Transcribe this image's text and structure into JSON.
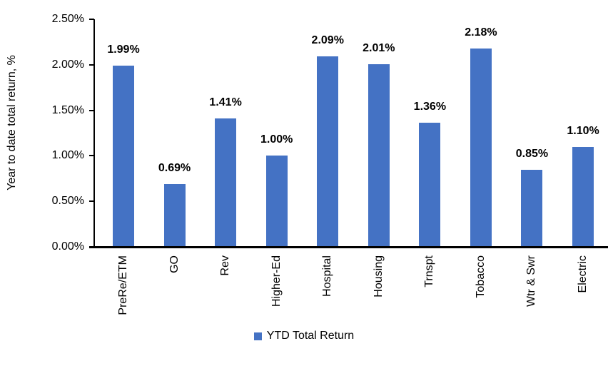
{
  "chart_data": {
    "type": "bar",
    "title": "",
    "categories": [
      "PreRe/ETM",
      "GO",
      "Rev",
      "Higher-Ed",
      "Hospital",
      "Housing",
      "Trnspt",
      "Tobacco",
      "Wtr & Swr",
      "Electric"
    ],
    "values": [
      1.99,
      0.69,
      1.41,
      1.0,
      2.09,
      2.01,
      1.36,
      2.18,
      0.85,
      1.1
    ],
    "value_labels": [
      "1.99%",
      "0.69%",
      "1.41%",
      "1.00%",
      "2.09%",
      "2.01%",
      "1.36%",
      "2.18%",
      "0.85%",
      "1.10%"
    ],
    "xlabel": "",
    "ylabel": "Year to date total return, %",
    "ylim": [
      0,
      2.5
    ],
    "ytick_step": 0.5,
    "ytick_labels": [
      "0.00%",
      "0.50%",
      "1.00%",
      "1.50%",
      "2.00%",
      "2.50%"
    ],
    "grid": false,
    "legend_position": "bottom",
    "legend": [
      {
        "label": "YTD Total Return",
        "color": "#4472C4"
      }
    ],
    "bar_color": "#4472C4",
    "axis_color": "#000000",
    "text_color": "#000000"
  }
}
